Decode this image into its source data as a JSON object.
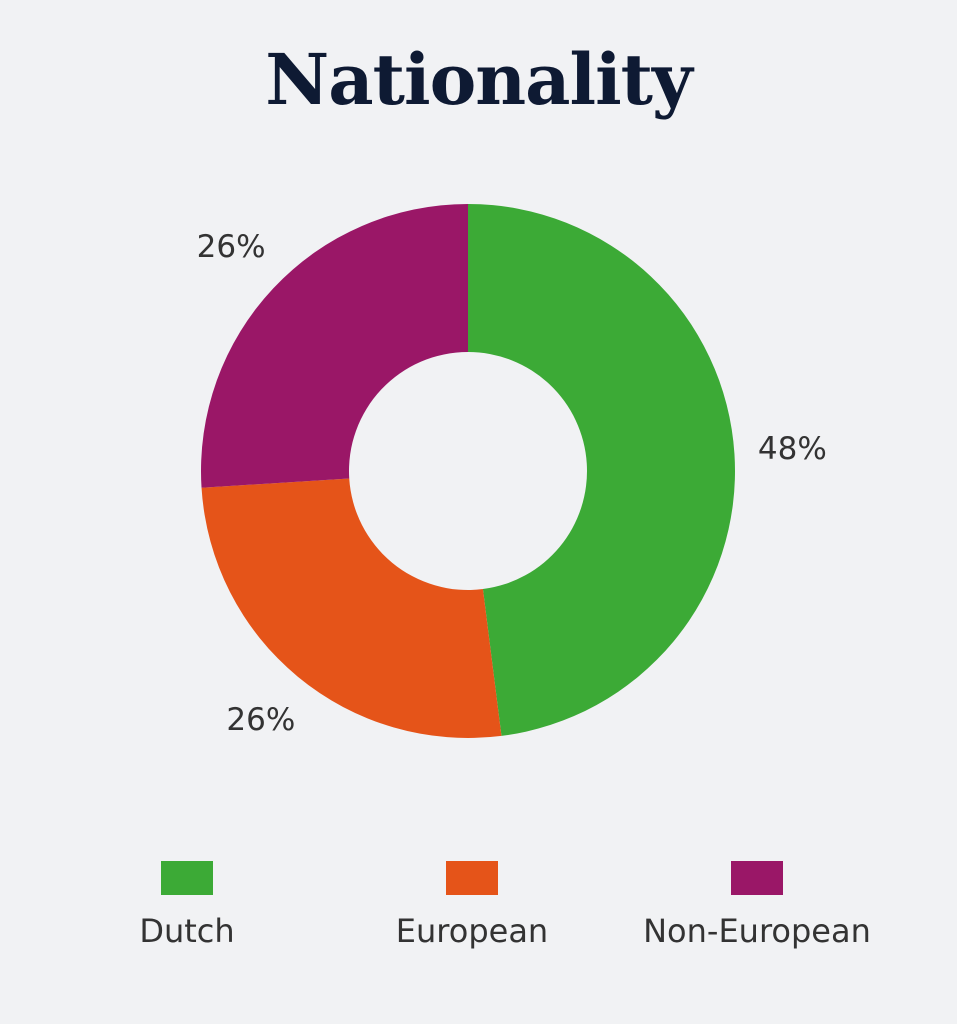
{
  "chart_data": {
    "type": "pie",
    "donut": true,
    "title": "Nationality",
    "categories": [
      "Dutch",
      "European",
      "Non-European"
    ],
    "values": [
      48,
      26,
      26
    ],
    "labels": [
      "48%",
      "26%",
      "26%"
    ],
    "colors": [
      "#3caa36",
      "#e55419",
      "#9a1767"
    ],
    "legend_position": "bottom",
    "start_angle_deg": 0,
    "direction": "clockwise"
  },
  "page": {
    "background": "#f1f2f4",
    "title_color": "#0e1a33"
  }
}
